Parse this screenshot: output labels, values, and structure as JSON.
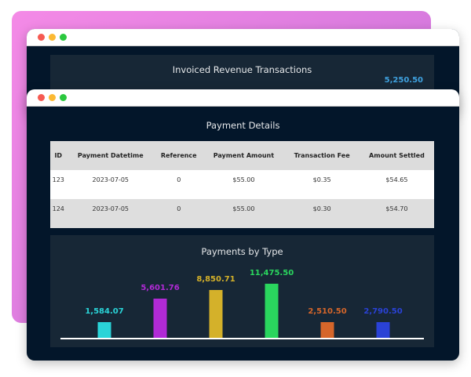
{
  "back_window": {
    "title": "Invoiced Revenue Transactions",
    "value_label": "5,250.50",
    "value_color": "#3fa2e0"
  },
  "front_window": {
    "title": "Payment Details",
    "table": {
      "columns": [
        "ID",
        "Payment Datetime",
        "Reference",
        "Payment Amount",
        "Transaction Fee",
        "Amount Settled"
      ],
      "rows": [
        [
          "123",
          "2023-07-05",
          "0",
          "$55.00",
          "$0.35",
          "$54.65"
        ],
        [
          "124",
          "2023-07-05",
          "0",
          "$55.00",
          "$0.30",
          "$54.70"
        ]
      ]
    }
  },
  "chart_data": {
    "type": "bar",
    "title": "Payments by Type",
    "values": [
      1584.07,
      5601.76,
      8850.71,
      11475.5,
      2510.5,
      2790.5
    ],
    "labels": [
      "1,584.07",
      "5,601.76",
      "8,850.71",
      "11,475.50",
      "2,510.50",
      "2,790.50"
    ],
    "colors": [
      "#2ad4d8",
      "#b12ad6",
      "#d4b12a",
      "#2ad65e",
      "#d6662a",
      "#2a42d6"
    ],
    "grid": false
  }
}
